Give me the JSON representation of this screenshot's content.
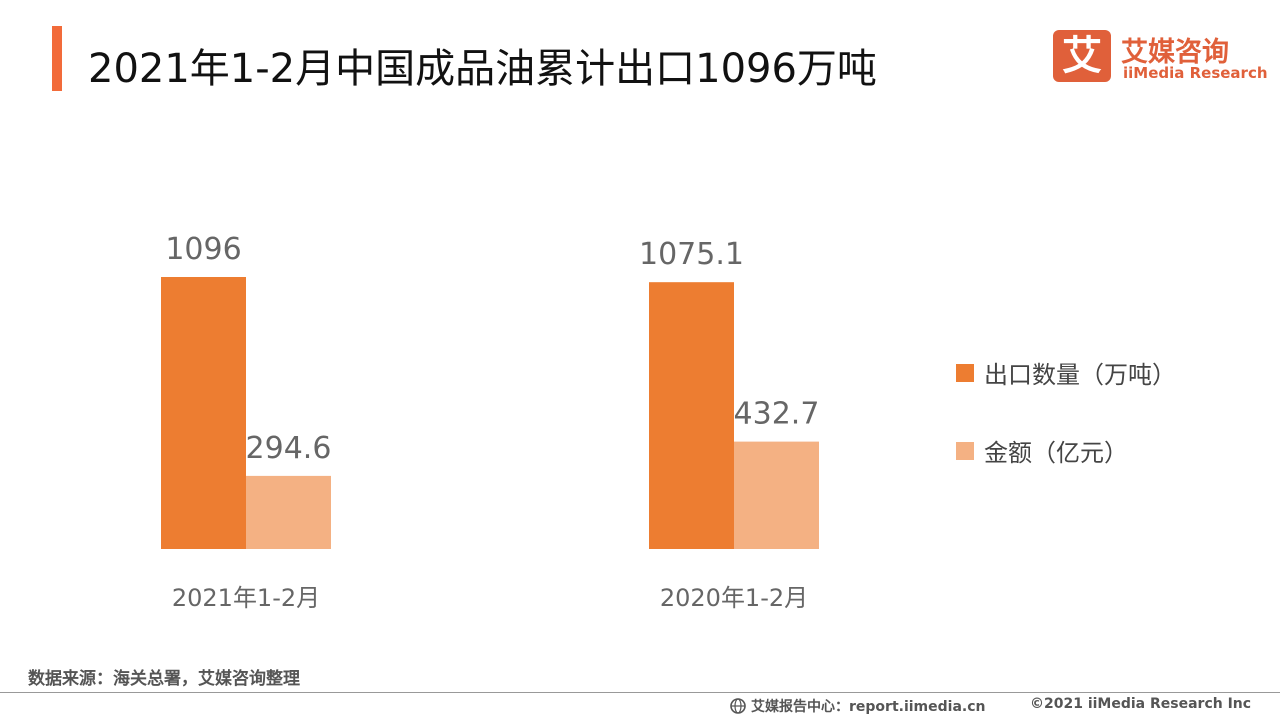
{
  "header": {
    "title": "2021年1-2月中国成品油累计出口1096万吨",
    "accent_color": "#F26B3A"
  },
  "logo": {
    "mark": "艾",
    "cn": "艾媒咨询",
    "en": "iiMedia Research",
    "color": "#E0603A"
  },
  "chart_data": {
    "type": "bar",
    "categories": [
      "2021年1-2月",
      "2020年1-2月"
    ],
    "series": [
      {
        "name": "出口数量（万吨）",
        "values": [
          1096,
          1075.1
        ],
        "labels": [
          "1096",
          "1075.1"
        ],
        "color": "#ED7D31"
      },
      {
        "name": "金额（亿元）",
        "values": [
          294.6,
          432.7
        ],
        "labels": [
          "294.6",
          "432.7"
        ],
        "color": "#F4B183"
      }
    ],
    "title": "",
    "xlabel": "",
    "ylabel": "",
    "ylim": [
      0,
      1300
    ],
    "grid": false,
    "legend_position": "right"
  },
  "footer": {
    "source": "数据来源：海关总署，艾媒咨询整理",
    "center": "艾媒报告中心：report.iimedia.cn",
    "right": "©2021  iiMedia Research  Inc"
  }
}
